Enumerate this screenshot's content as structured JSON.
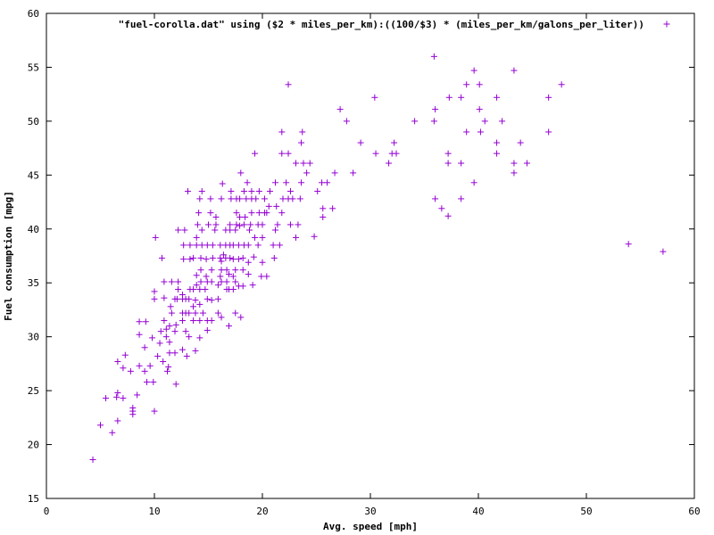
{
  "chart_data": {
    "type": "scatter",
    "title": "",
    "xlabel": "Avg. speed [mph]",
    "ylabel": "Fuel consumption [mpg]",
    "xlim": [
      0,
      60
    ],
    "ylim": [
      15,
      60
    ],
    "xticks": [
      0,
      10,
      20,
      30,
      40,
      50,
      60
    ],
    "yticks": [
      15,
      20,
      25,
      30,
      35,
      40,
      45,
      50,
      55,
      60
    ],
    "grid": false,
    "legend_position": "top-right",
    "series": [
      {
        "name": "\"fuel-corolla.dat\" using ($2 * miles_per_km):((100/$3) * (miles_per_km/galons_per_liter))",
        "color": "#9400d3",
        "marker": "plus",
        "points": [
          [
            4.3,
            18.6
          ],
          [
            5.0,
            21.8
          ],
          [
            5.5,
            24.3
          ],
          [
            6.1,
            21.1
          ],
          [
            6.5,
            24.4
          ],
          [
            6.6,
            22.2
          ],
          [
            6.6,
            24.8
          ],
          [
            6.6,
            27.7
          ],
          [
            7.1,
            24.3
          ],
          [
            7.1,
            27.1
          ],
          [
            7.3,
            28.3
          ],
          [
            7.8,
            26.8
          ],
          [
            8.0,
            22.8
          ],
          [
            8.0,
            23.1
          ],
          [
            8.0,
            23.4
          ],
          [
            8.4,
            24.6
          ],
          [
            8.6,
            27.3
          ],
          [
            8.6,
            30.2
          ],
          [
            8.6,
            31.4
          ],
          [
            9.1,
            26.8
          ],
          [
            9.1,
            29.0
          ],
          [
            9.2,
            31.4
          ],
          [
            9.3,
            25.8
          ],
          [
            9.6,
            27.3
          ],
          [
            9.8,
            29.9
          ],
          [
            9.9,
            25.8
          ],
          [
            10.0,
            23.1
          ],
          [
            10.0,
            33.5
          ],
          [
            10.0,
            34.2
          ],
          [
            10.1,
            39.2
          ],
          [
            10.3,
            28.2
          ],
          [
            10.5,
            29.4
          ],
          [
            10.6,
            30.5
          ],
          [
            10.7,
            37.3
          ],
          [
            10.8,
            27.7
          ],
          [
            10.9,
            31.5
          ],
          [
            10.9,
            33.6
          ],
          [
            10.9,
            35.1
          ],
          [
            11.1,
            30.0
          ],
          [
            11.1,
            30.7
          ],
          [
            11.2,
            26.8
          ],
          [
            11.3,
            27.2
          ],
          [
            11.4,
            28.5
          ],
          [
            11.4,
            29.5
          ],
          [
            11.4,
            31.0
          ],
          [
            11.5,
            32.8
          ],
          [
            11.6,
            35.1
          ],
          [
            11.6,
            32.2
          ],
          [
            11.9,
            33.5
          ],
          [
            11.9,
            28.5
          ],
          [
            11.9,
            30.5
          ],
          [
            12.0,
            31.1
          ],
          [
            12.0,
            25.6
          ],
          [
            12.1,
            33.5
          ],
          [
            12.2,
            34.4
          ],
          [
            12.2,
            35.1
          ],
          [
            12.2,
            39.9
          ],
          [
            12.6,
            28.8
          ],
          [
            12.6,
            31.5
          ],
          [
            12.6,
            32.2
          ],
          [
            12.6,
            33.5
          ],
          [
            12.6,
            33.9
          ],
          [
            12.7,
            37.2
          ],
          [
            12.7,
            38.5
          ],
          [
            12.8,
            39.9
          ],
          [
            12.9,
            30.5
          ],
          [
            12.9,
            32.2
          ],
          [
            12.9,
            33.5
          ],
          [
            13.0,
            28.2
          ],
          [
            13.1,
            43.5
          ],
          [
            13.2,
            30.0
          ],
          [
            13.2,
            32.2
          ],
          [
            13.2,
            33.5
          ],
          [
            13.3,
            34.4
          ],
          [
            13.3,
            37.2
          ],
          [
            13.3,
            38.5
          ],
          [
            13.6,
            32.8
          ],
          [
            13.6,
            31.5
          ],
          [
            13.6,
            34.4
          ],
          [
            13.6,
            37.3
          ],
          [
            13.8,
            28.7
          ],
          [
            13.8,
            32.2
          ],
          [
            13.8,
            33.4
          ],
          [
            13.9,
            34.8
          ],
          [
            13.9,
            35.7
          ],
          [
            13.9,
            38.5
          ],
          [
            13.9,
            39.2
          ],
          [
            14.0,
            40.4
          ],
          [
            14.1,
            41.5
          ],
          [
            14.2,
            42.8
          ],
          [
            14.2,
            29.9
          ],
          [
            14.2,
            31.5
          ],
          [
            14.2,
            33.0
          ],
          [
            14.2,
            34.4
          ],
          [
            14.3,
            35.1
          ],
          [
            14.3,
            36.2
          ],
          [
            14.3,
            37.3
          ],
          [
            14.4,
            38.5
          ],
          [
            14.4,
            39.9
          ],
          [
            14.4,
            43.5
          ],
          [
            14.5,
            32.2
          ],
          [
            14.7,
            34.4
          ],
          [
            14.8,
            35.6
          ],
          [
            14.8,
            37.2
          ],
          [
            14.9,
            30.6
          ],
          [
            14.9,
            31.5
          ],
          [
            14.9,
            33.5
          ],
          [
            14.9,
            35.1
          ],
          [
            14.9,
            38.5
          ],
          [
            15.0,
            40.4
          ],
          [
            15.2,
            41.5
          ],
          [
            15.2,
            42.8
          ],
          [
            15.3,
            31.5
          ],
          [
            15.3,
            33.4
          ],
          [
            15.3,
            35.1
          ],
          [
            15.3,
            36.2
          ],
          [
            15.4,
            37.3
          ],
          [
            15.4,
            38.5
          ],
          [
            15.6,
            39.9
          ],
          [
            15.7,
            40.4
          ],
          [
            15.7,
            41.1
          ],
          [
            15.9,
            32.2
          ],
          [
            15.9,
            33.5
          ],
          [
            15.9,
            34.8
          ],
          [
            16.1,
            35.6
          ],
          [
            16.1,
            37.3
          ],
          [
            16.1,
            38.5
          ],
          [
            16.2,
            31.8
          ],
          [
            16.2,
            35.1
          ],
          [
            16.2,
            36.2
          ],
          [
            16.2,
            37.0
          ],
          [
            16.2,
            42.8
          ],
          [
            16.3,
            44.2
          ],
          [
            16.4,
            37.6
          ],
          [
            16.6,
            37.3
          ],
          [
            16.6,
            38.5
          ],
          [
            16.6,
            39.9
          ],
          [
            16.7,
            34.4
          ],
          [
            16.7,
            35.1
          ],
          [
            16.7,
            36.2
          ],
          [
            16.9,
            31.0
          ],
          [
            16.9,
            34.4
          ],
          [
            16.9,
            35.8
          ],
          [
            17.0,
            37.3
          ],
          [
            17.0,
            38.5
          ],
          [
            17.0,
            39.9
          ],
          [
            17.0,
            40.4
          ],
          [
            17.1,
            42.8
          ],
          [
            17.1,
            43.5
          ],
          [
            17.3,
            34.4
          ],
          [
            17.3,
            35.6
          ],
          [
            17.3,
            37.2
          ],
          [
            17.3,
            38.5
          ],
          [
            17.5,
            32.2
          ],
          [
            17.5,
            35.1
          ],
          [
            17.5,
            36.2
          ],
          [
            17.5,
            39.9
          ],
          [
            17.6,
            40.4
          ],
          [
            17.6,
            41.5
          ],
          [
            17.6,
            42.8
          ],
          [
            17.8,
            34.7
          ],
          [
            17.8,
            37.2
          ],
          [
            17.8,
            38.5
          ],
          [
            17.9,
            40.3
          ],
          [
            17.9,
            41.1
          ],
          [
            17.9,
            42.8
          ],
          [
            18.0,
            31.8
          ],
          [
            18.0,
            45.2
          ],
          [
            18.2,
            34.7
          ],
          [
            18.2,
            36.2
          ],
          [
            18.2,
            37.3
          ],
          [
            18.3,
            38.5
          ],
          [
            18.3,
            40.4
          ],
          [
            18.3,
            43.5
          ],
          [
            18.4,
            41.1
          ],
          [
            18.5,
            42.8
          ],
          [
            18.6,
            44.3
          ],
          [
            18.7,
            35.8
          ],
          [
            18.7,
            36.9
          ],
          [
            18.7,
            38.5
          ],
          [
            18.8,
            39.9
          ],
          [
            18.9,
            40.4
          ],
          [
            19.0,
            41.5
          ],
          [
            19.0,
            42.8
          ],
          [
            19.0,
            43.5
          ],
          [
            19.1,
            34.8
          ],
          [
            19.2,
            37.4
          ],
          [
            19.3,
            39.2
          ],
          [
            19.3,
            47.0
          ],
          [
            19.4,
            42.8
          ],
          [
            19.6,
            38.5
          ],
          [
            19.6,
            40.4
          ],
          [
            19.7,
            41.5
          ],
          [
            19.7,
            43.5
          ],
          [
            19.9,
            35.6
          ],
          [
            20.0,
            36.9
          ],
          [
            20.0,
            39.2
          ],
          [
            20.0,
            40.4
          ],
          [
            20.2,
            41.5
          ],
          [
            20.2,
            42.8
          ],
          [
            20.4,
            35.6
          ],
          [
            20.4,
            41.5
          ],
          [
            20.6,
            42.1
          ],
          [
            20.7,
            43.5
          ],
          [
            21.0,
            38.5
          ],
          [
            21.1,
            37.3
          ],
          [
            21.2,
            44.3
          ],
          [
            21.2,
            39.9
          ],
          [
            21.3,
            42.1
          ],
          [
            21.4,
            40.4
          ],
          [
            21.6,
            38.5
          ],
          [
            21.8,
            47.0
          ],
          [
            21.8,
            49.0
          ],
          [
            21.8,
            41.5
          ],
          [
            21.9,
            42.8
          ],
          [
            22.2,
            44.3
          ],
          [
            22.4,
            53.4
          ],
          [
            22.4,
            42.8
          ],
          [
            22.4,
            47.0
          ],
          [
            22.6,
            40.4
          ],
          [
            22.6,
            43.5
          ],
          [
            22.8,
            42.8
          ],
          [
            23.1,
            39.2
          ],
          [
            23.1,
            46.1
          ],
          [
            23.3,
            40.4
          ],
          [
            23.5,
            42.8
          ],
          [
            23.6,
            48.0
          ],
          [
            23.6,
            44.3
          ],
          [
            23.7,
            49.0
          ],
          [
            23.8,
            46.1
          ],
          [
            24.1,
            45.2
          ],
          [
            24.4,
            46.1
          ],
          [
            24.8,
            39.3
          ],
          [
            25.1,
            43.5
          ],
          [
            25.5,
            44.3
          ],
          [
            25.6,
            41.9
          ],
          [
            25.6,
            41.1
          ],
          [
            26.0,
            44.3
          ],
          [
            26.5,
            41.9
          ],
          [
            26.7,
            45.2
          ],
          [
            27.2,
            51.1
          ],
          [
            27.8,
            50.0
          ],
          [
            28.4,
            45.2
          ],
          [
            29.1,
            48.0
          ],
          [
            30.4,
            52.2
          ],
          [
            30.5,
            47.0
          ],
          [
            31.7,
            46.1
          ],
          [
            32.0,
            47.0
          ],
          [
            32.2,
            48.0
          ],
          [
            32.4,
            47.0
          ],
          [
            34.1,
            50.0
          ],
          [
            35.9,
            56.0
          ],
          [
            35.9,
            50.0
          ],
          [
            36.0,
            51.1
          ],
          [
            36.0,
            42.8
          ],
          [
            36.6,
            41.9
          ],
          [
            37.2,
            41.2
          ],
          [
            37.2,
            46.1
          ],
          [
            37.2,
            47.0
          ],
          [
            37.3,
            52.2
          ],
          [
            38.4,
            52.2
          ],
          [
            38.4,
            42.8
          ],
          [
            38.4,
            46.1
          ],
          [
            38.9,
            49.0
          ],
          [
            38.9,
            53.4
          ],
          [
            39.6,
            54.7
          ],
          [
            39.6,
            44.3
          ],
          [
            40.1,
            53.4
          ],
          [
            40.1,
            51.1
          ],
          [
            40.2,
            49.0
          ],
          [
            40.6,
            50.0
          ],
          [
            41.7,
            52.2
          ],
          [
            41.7,
            48.0
          ],
          [
            41.7,
            47.0
          ],
          [
            42.2,
            50.0
          ],
          [
            43.3,
            54.7
          ],
          [
            43.3,
            46.1
          ],
          [
            43.3,
            45.2
          ],
          [
            43.9,
            48.0
          ],
          [
            44.5,
            46.1
          ],
          [
            46.5,
            52.2
          ],
          [
            46.5,
            49.0
          ],
          [
            47.7,
            53.4
          ],
          [
            53.9,
            38.6
          ],
          [
            57.1,
            37.9
          ]
        ]
      }
    ]
  }
}
